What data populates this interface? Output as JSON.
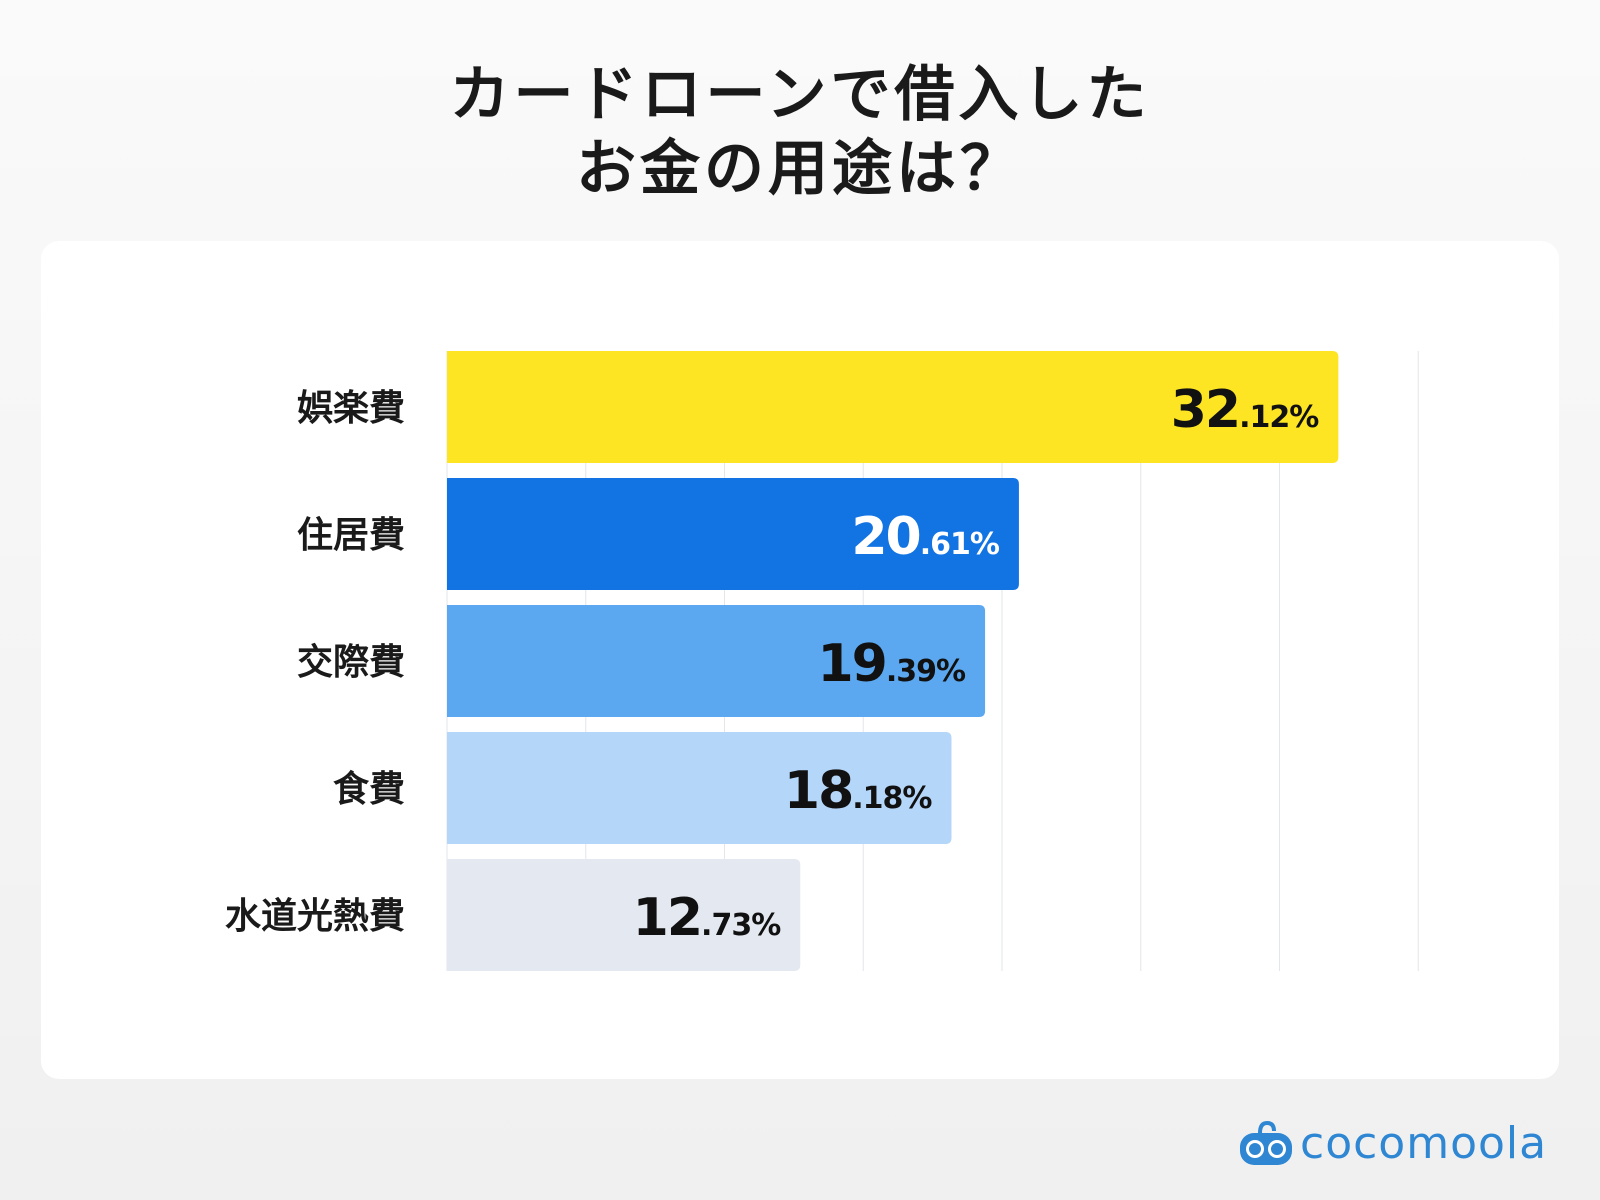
{
  "title": {
    "line1": "カードローンで借入した",
    "line2": "お金の用途は？"
  },
  "chart_data": {
    "type": "bar",
    "orientation": "horizontal",
    "categories": [
      "娯楽費",
      "住居費",
      "交際費",
      "食費",
      "水道光熱費"
    ],
    "values": [
      32.12,
      20.61,
      19.39,
      18.18,
      12.73
    ],
    "labels": [
      "32.12%",
      "20.61%",
      "19.39%",
      "18.18%",
      "12.73%"
    ],
    "colors": [
      "#FDE523",
      "#1273E3",
      "#5CA8F0",
      "#B4D6F8",
      "#E4E8F0"
    ],
    "label_colors": [
      "#111111",
      "#ffffff",
      "#111111",
      "#111111",
      "#111111"
    ],
    "xlim": [
      0,
      35
    ],
    "grid_step": 5,
    "grid": true,
    "title": "",
    "xlabel": "",
    "ylabel": ""
  },
  "brand": {
    "name": "cocomoola",
    "color": "#2f86d2"
  }
}
